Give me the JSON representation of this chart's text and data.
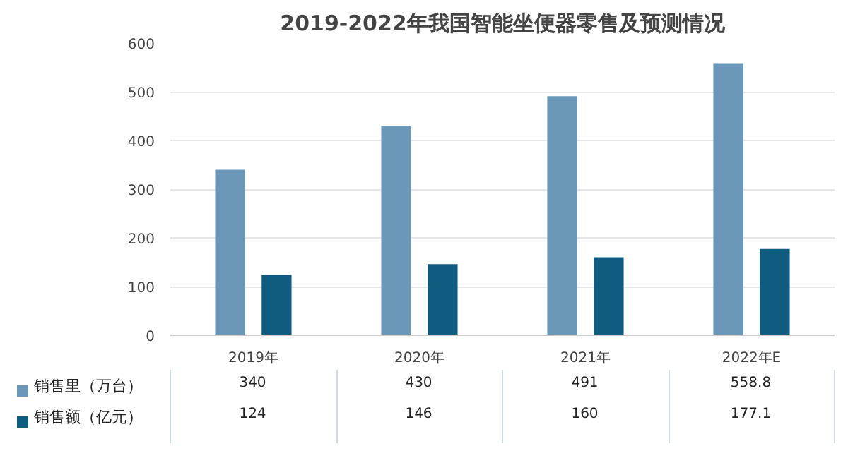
{
  "chart_data": {
    "type": "bar",
    "title": "2019-2022年我国智能坐便器零售及预测情况",
    "categories": [
      "2019年",
      "2020年",
      "2021年",
      "2022年E"
    ],
    "series": [
      {
        "name": "销售里（万台）",
        "color": "#6b98b8",
        "values": [
          340,
          430,
          491,
          558.8
        ]
      },
      {
        "name": "销售额（亿元）",
        "color": "#0f5c80",
        "values": [
          124,
          146,
          160,
          177.1
        ]
      }
    ],
    "ylim": [
      0,
      600
    ],
    "yticks": [
      0,
      100,
      200,
      300,
      400,
      500,
      600
    ],
    "grid": "y",
    "legend": "bottom",
    "data_labels": true
  }
}
